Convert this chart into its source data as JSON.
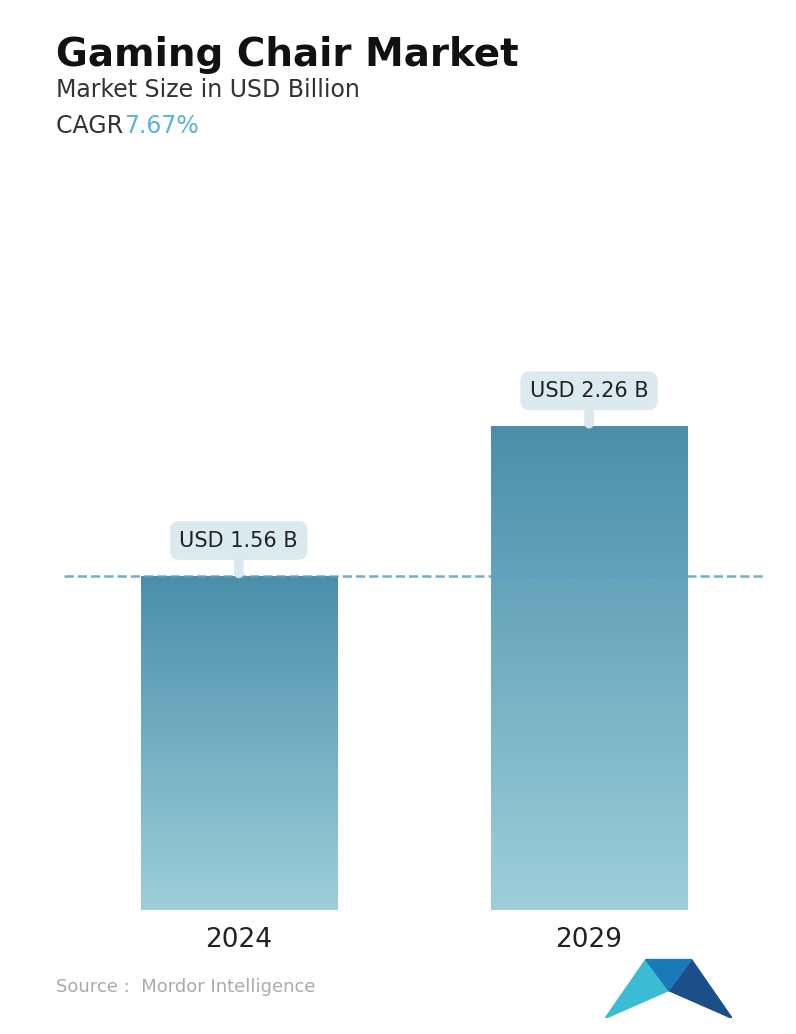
{
  "title": "Gaming Chair Market",
  "subtitle": "Market Size in USD Billion",
  "cagr_label": "CAGR  ",
  "cagr_value": "7.67%",
  "cagr_color": "#5ab4d6",
  "categories": [
    "2024",
    "2029"
  ],
  "values": [
    1.56,
    2.26
  ],
  "bar_labels": [
    "USD 1.56 B",
    "USD 2.26 B"
  ],
  "bar_top_color": "#4a8faa",
  "bar_bottom_color": "#9dcfda",
  "dashed_line_color": "#5a9fc4",
  "dashed_line_value": 1.56,
  "source_text": "Source :  Mordor Intelligence",
  "source_color": "#aaaaaa",
  "background_color": "#ffffff",
  "ylim": [
    0,
    2.9
  ],
  "title_fontsize": 28,
  "subtitle_fontsize": 17,
  "cagr_fontsize": 17,
  "bar_label_fontsize": 15,
  "xtick_fontsize": 19,
  "source_fontsize": 13,
  "callout_color": "#d8e8ee"
}
